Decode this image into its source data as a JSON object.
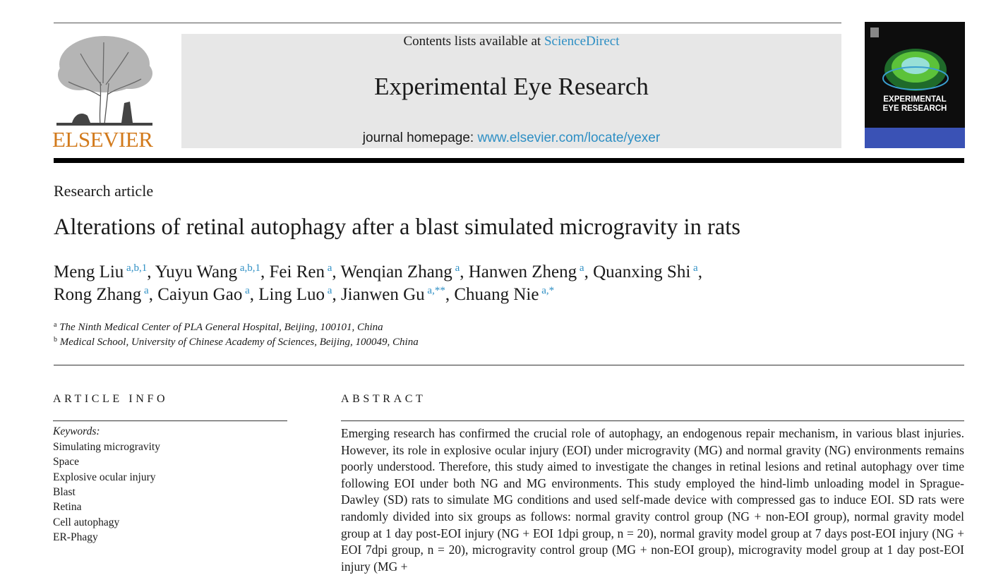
{
  "journal_header": {
    "contents_prefix": "Contents lists available at ",
    "contents_link": "ScienceDirect",
    "journal_title": "Experimental Eye Research",
    "homepage_prefix": "journal homepage: ",
    "homepage_link": "www.elsevier.com/locate/yexer",
    "publisher_wordmark": "ELSEVIER",
    "cover_title_line1": "EXPERIMENTAL",
    "cover_title_line2": "EYE RESEARCH"
  },
  "colors": {
    "link": "#2e8fc4",
    "publisher": "#d27a1c",
    "banner": "#e7e7e7"
  },
  "article": {
    "type": "Research article",
    "title": "Alterations of retinal autophagy after a blast simulated microgravity in rats",
    "authors_line1": [
      {
        "name": "Meng Liu",
        "sup": "a,b,1",
        "sep": ", "
      },
      {
        "name": "Yuyu Wang",
        "sup": "a,b,1",
        "sep": ", "
      },
      {
        "name": "Fei Ren",
        "sup": "a",
        "sep": ", "
      },
      {
        "name": "Wenqian Zhang",
        "sup": "a",
        "sep": ", "
      },
      {
        "name": "Hanwen Zheng",
        "sup": "a",
        "sep": ", "
      },
      {
        "name": "Quanxing Shi",
        "sup": "a",
        "sep": ","
      }
    ],
    "authors_line2": [
      {
        "name": "Rong Zhang",
        "sup": "a",
        "sep": ", "
      },
      {
        "name": "Caiyun Gao",
        "sup": "a",
        "sep": ", "
      },
      {
        "name": "Ling Luo",
        "sup": "a",
        "sep": ", "
      },
      {
        "name": "Jianwen Gu",
        "sup": "a,**",
        "sep": ", "
      },
      {
        "name": "Chuang Nie",
        "sup": "a,*",
        "sep": ""
      }
    ],
    "affiliations": [
      {
        "mark": "a",
        "text": "The Ninth Medical Center of PLA General Hospital, Beijing, 100101, China"
      },
      {
        "mark": "b",
        "text": "Medical School, University of Chinese Academy of Sciences, Beijing, 100049, China"
      }
    ]
  },
  "article_info": {
    "heading": "ARTICLE INFO",
    "keywords_label": "Keywords:",
    "keywords": [
      "Simulating microgravity",
      "Space",
      "Explosive ocular injury",
      "Blast",
      "Retina",
      "Cell autophagy",
      "ER-Phagy"
    ]
  },
  "abstract": {
    "heading": "ABSTRACT",
    "text": "Emerging research has confirmed the crucial role of autophagy, an endogenous repair mechanism, in various blast injuries. However, its role in explosive ocular injury (EOI) under microgravity (MG) and normal gravity (NG) environments remains poorly understood. Therefore, this study aimed to investigate the changes in retinal lesions and retinal autophagy over time following EOI under both NG and MG environments. This study employed the hind-limb unloading model in Sprague-Dawley (SD) rats to simulate MG conditions and used self-made device with compressed gas to induce EOI. SD rats were randomly divided into six groups as follows: normal gravity control group (NG + non-EOI group), normal gravity model group at 1 day post-EOI injury (NG + EOI 1dpi group, n = 20), normal gravity model group at 7 days post-EOI injury (NG + EOI 7dpi group, n = 20), microgravity control group (MG + non-EOI group), microgravity model group at 1 day post-EOI injury (MG +"
  }
}
